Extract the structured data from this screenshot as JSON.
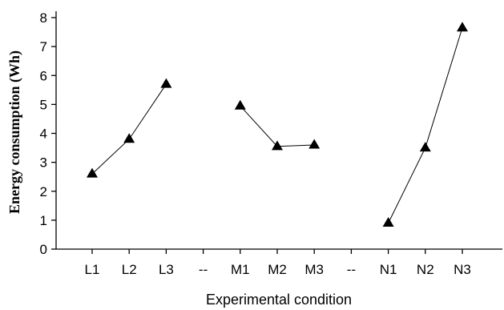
{
  "chart_data": {
    "type": "line",
    "xlabel": "Experimental condition",
    "ylabel": "Energy consumption (Wh)",
    "ylim": [
      0,
      8
    ],
    "yticks": [
      "0",
      "1",
      "2",
      "3",
      "4",
      "5",
      "6",
      "7",
      "8"
    ],
    "categories": [
      "L1",
      "L2",
      "L3",
      "--",
      "M1",
      "M2",
      "M3",
      "--",
      "N1",
      "N2",
      "N3"
    ],
    "marker": "triangle",
    "line_color": "#000000",
    "series": [
      {
        "x": [
          "L1",
          "L2",
          "L3"
        ],
        "values": [
          2.6,
          3.8,
          5.7
        ]
      },
      {
        "x": [
          "M1",
          "M2",
          "M3"
        ],
        "values": [
          4.95,
          3.55,
          3.6
        ]
      },
      {
        "x": [
          "N1",
          "N2",
          "N3"
        ],
        "values": [
          0.9,
          3.5,
          7.65
        ]
      }
    ]
  }
}
